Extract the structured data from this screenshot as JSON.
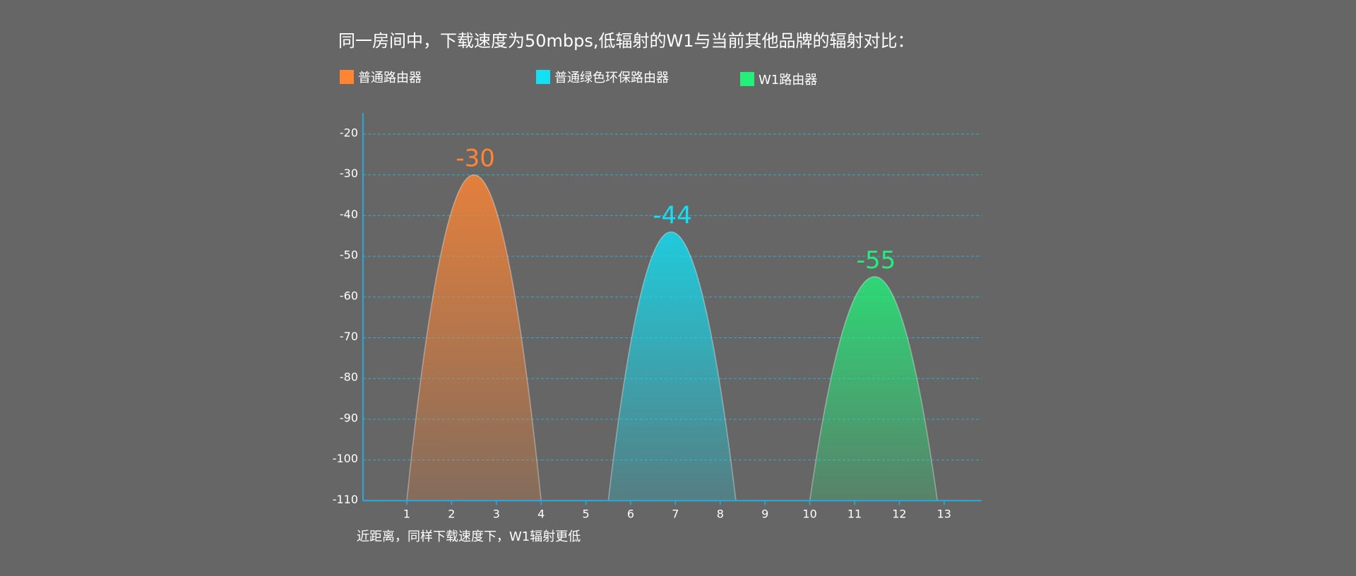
{
  "chart_data": {
    "type": "area",
    "title": "同一房间中，下载速度为50mbps,低辐射的W1与当前其他品牌的辐射对比：",
    "footnote": "近距离，同样下载速度下，W1辐射更低",
    "xlabel": "",
    "ylabel": "",
    "x_ticks": [
      "1",
      "2",
      "3",
      "4",
      "5",
      "6",
      "7",
      "8",
      "9",
      "10",
      "11",
      "12",
      "13"
    ],
    "y_ticks": [
      "-20",
      "-30",
      "-40",
      "-50",
      "-60",
      "-70",
      "-80",
      "-90",
      "-100",
      "-110"
    ],
    "xlim": [
      0,
      14
    ],
    "ylim": [
      -110,
      -15
    ],
    "grid": true,
    "legend_position": "top",
    "series": [
      {
        "name": "普通路由器",
        "color": "#ff8533",
        "start": 1,
        "peak_x": 2.5,
        "end": 4,
        "peak": -30,
        "peak_label": "-30"
      },
      {
        "name": "普通绿色环保路由器",
        "color": "#11e0f5",
        "start": 5.5,
        "peak_x": 6.9,
        "end": 8.35,
        "peak": -44,
        "peak_label": "-44"
      },
      {
        "name": "W1路由器",
        "color": "#22f07a",
        "start": 10,
        "peak_x": 11.45,
        "end": 12.85,
        "peak": -55,
        "peak_label": "-55"
      }
    ]
  }
}
